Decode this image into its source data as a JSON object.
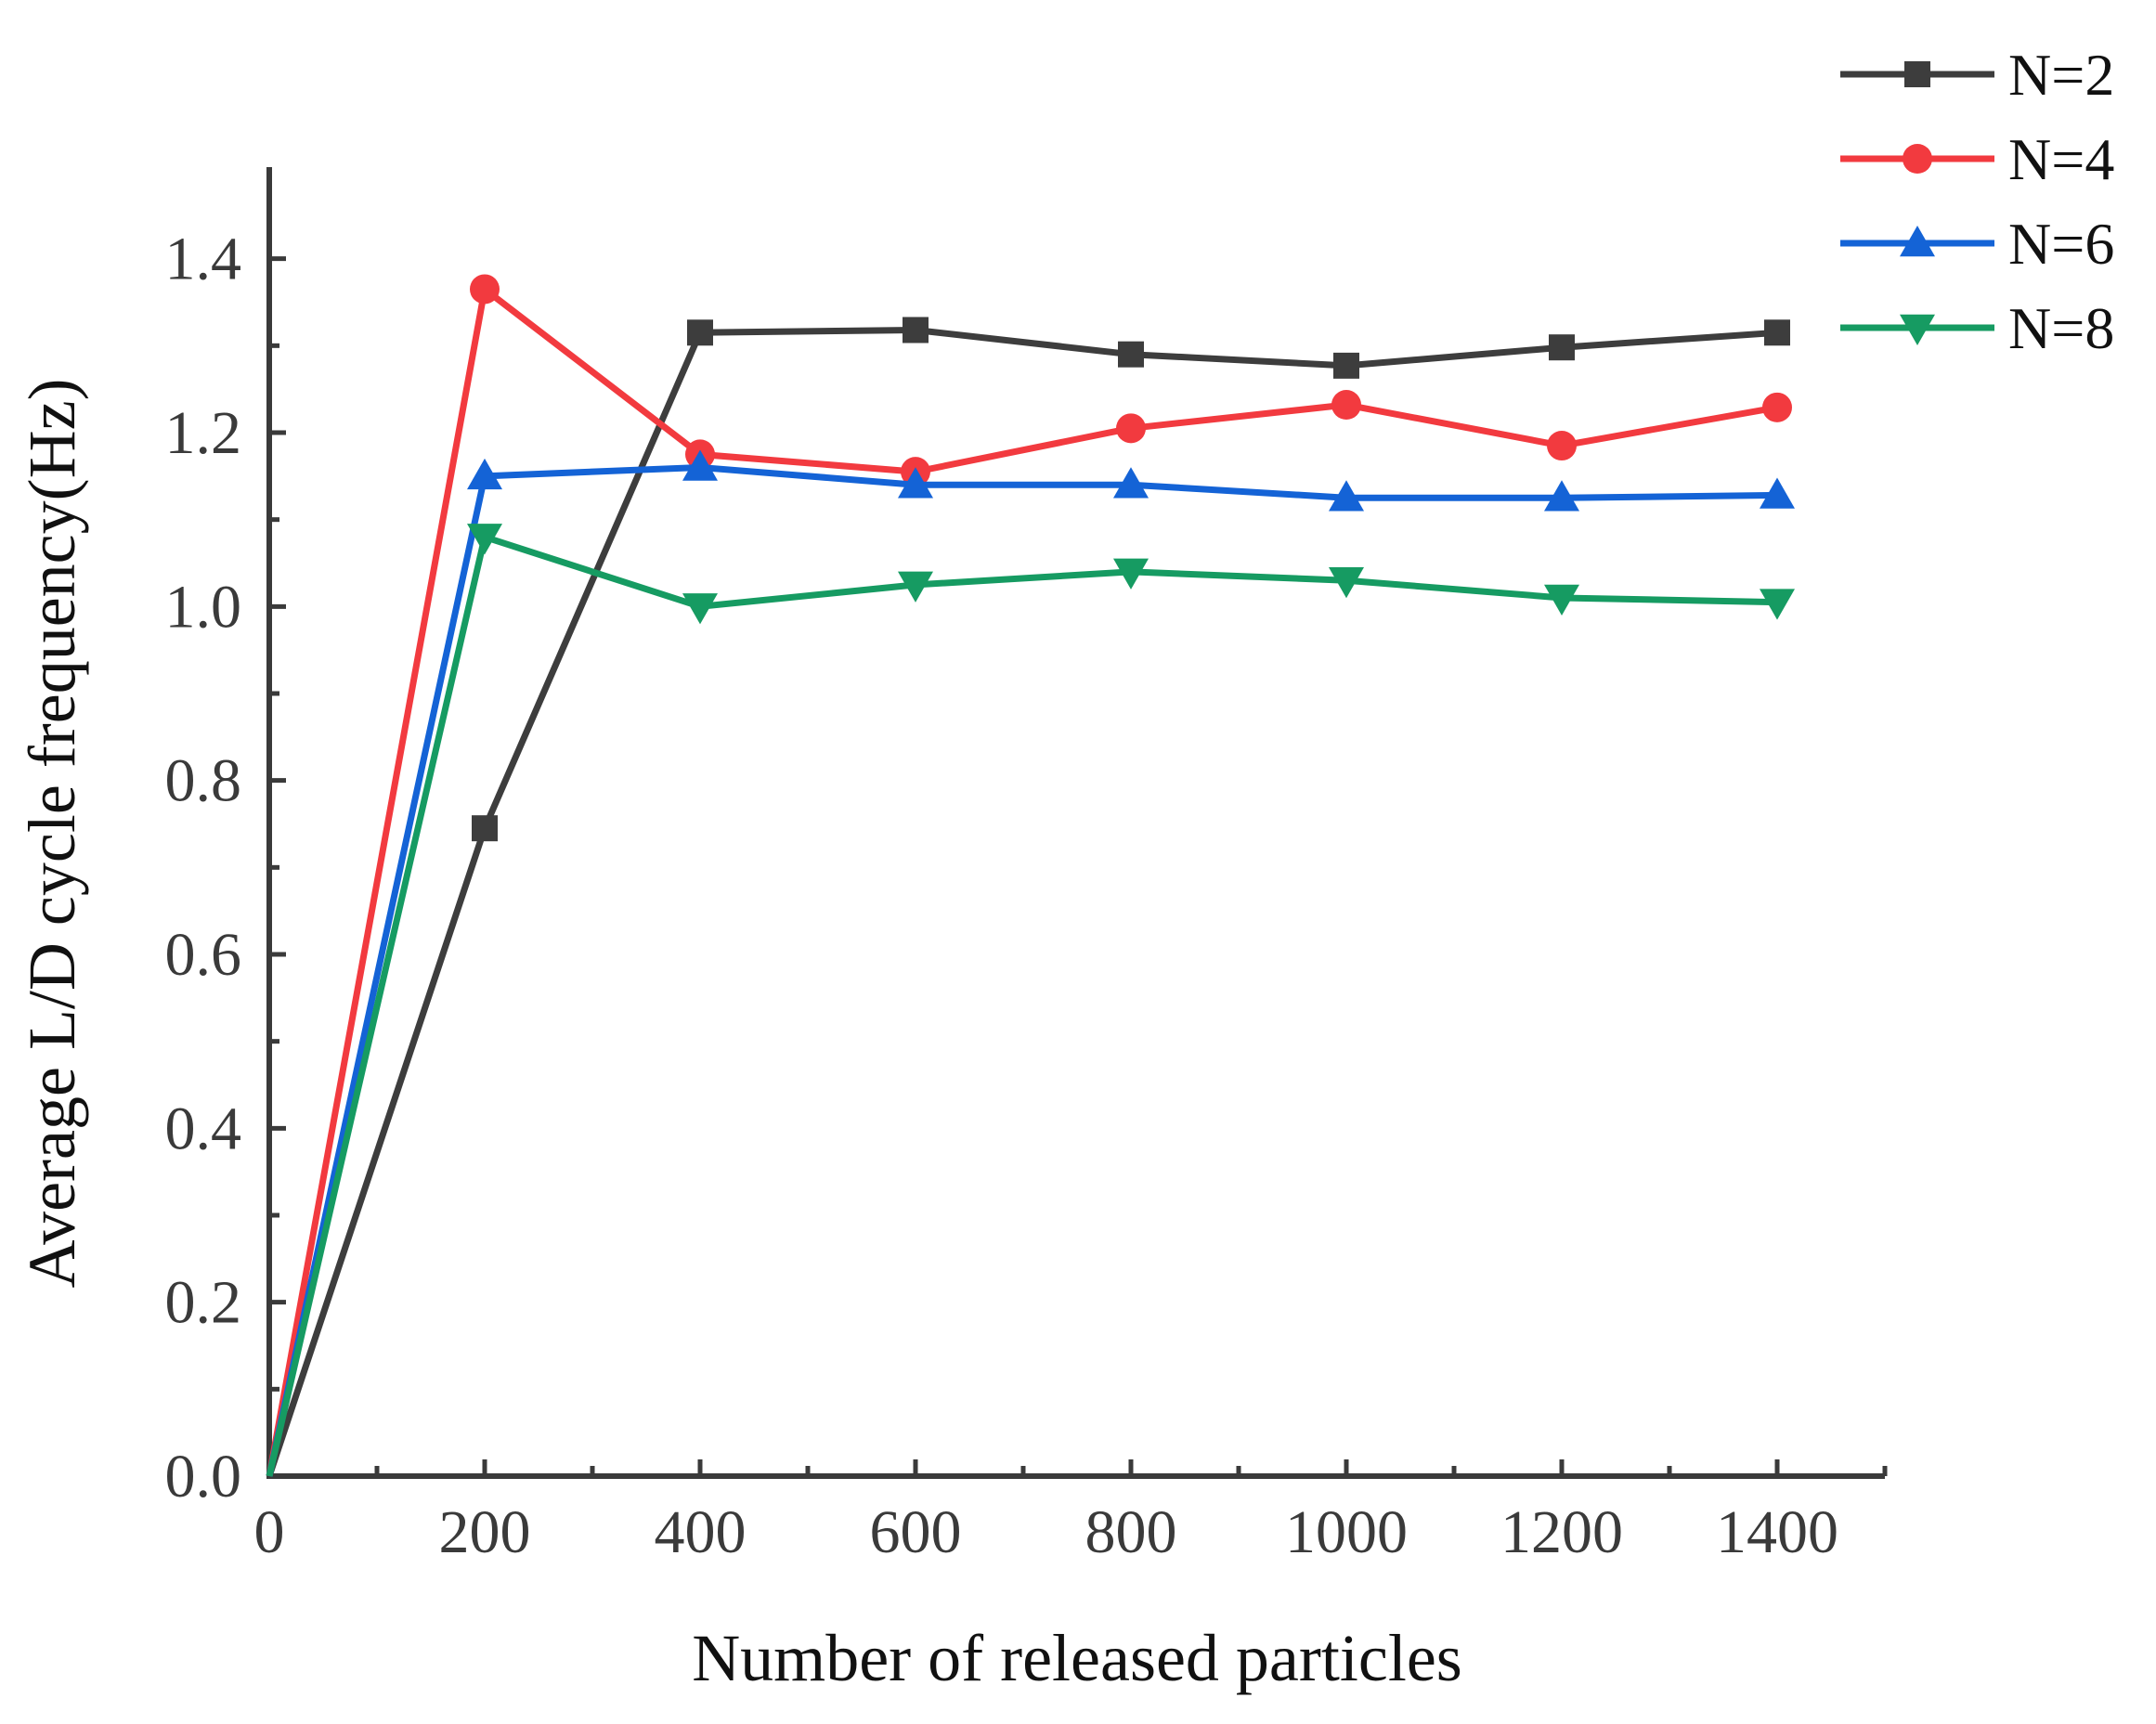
{
  "chart_data": {
    "type": "line",
    "title": "",
    "xlabel": "Number of released particles",
    "ylabel": "Average L/D cycle frequency(Hz)",
    "xlim": [
      0,
      1500
    ],
    "ylim": [
      0,
      1.5
    ],
    "x_ticks": [
      0,
      200,
      400,
      600,
      800,
      1000,
      1200,
      1400
    ],
    "x_tick_labels": [
      "0",
      "200",
      "400",
      "600",
      "800",
      "1000",
      "1200",
      "1400"
    ],
    "y_ticks": [
      0,
      0.2,
      0.4,
      0.6,
      0.8,
      1.0,
      1.2,
      1.4
    ],
    "y_tick_labels": [
      "0.0",
      "0.2",
      "0.4",
      "0.6",
      "0.8",
      "1.0",
      "1.2",
      "1.4"
    ],
    "grid": false,
    "legend_position": "top-right, outside plot",
    "x": [
      0,
      200,
      400,
      600,
      800,
      1000,
      1200,
      1400
    ],
    "series": [
      {
        "name": "N=2",
        "color": "#3d3d3d",
        "marker": "square",
        "values": [
          0,
          0.745,
          1.315,
          1.318,
          1.29,
          1.277,
          1.298,
          1.315
        ]
      },
      {
        "name": "N=4",
        "color": "#f23a3f",
        "marker": "circle",
        "values": [
          0,
          1.365,
          1.175,
          1.155,
          1.205,
          1.232,
          1.185,
          1.229
        ]
      },
      {
        "name": "N=6",
        "color": "#1463d6",
        "marker": "triangle-up",
        "values": [
          0,
          1.15,
          1.16,
          1.14,
          1.14,
          1.125,
          1.125,
          1.128
        ]
      },
      {
        "name": "N=8",
        "color": "#169b62",
        "marker": "triangle-down",
        "values": [
          0,
          1.08,
          1.0,
          1.025,
          1.04,
          1.03,
          1.01,
          1.005
        ]
      }
    ]
  }
}
